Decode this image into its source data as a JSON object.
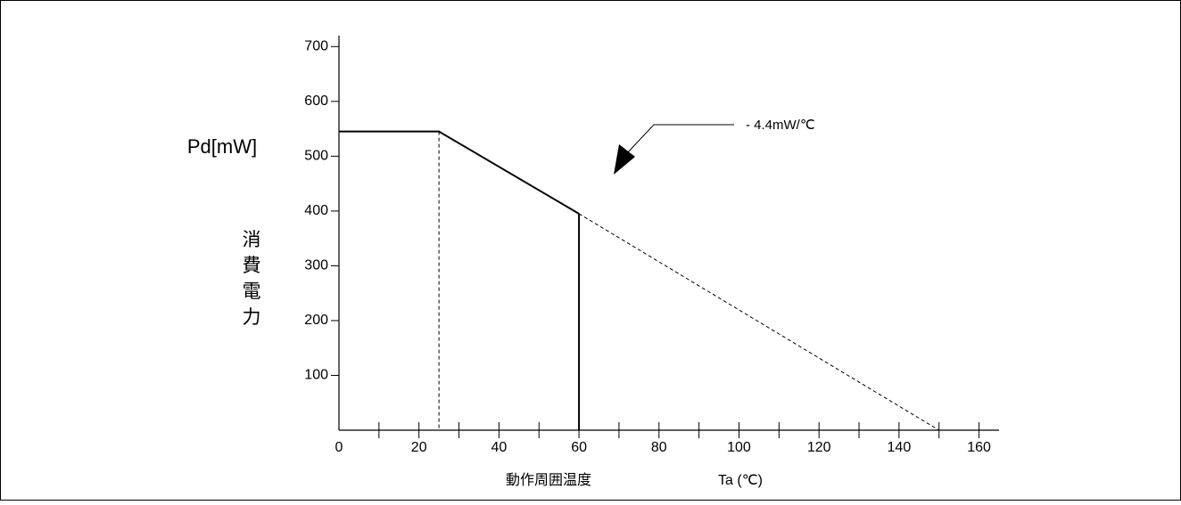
{
  "chart_data": {
    "type": "line",
    "y_unit_label": "Pd[mW]",
    "y_title_chars": [
      "消",
      "費",
      "電",
      "力"
    ],
    "x_title": "動作周囲温度",
    "x_unit_label": "Ta (℃)",
    "x_ticks": [
      0,
      20,
      40,
      60,
      80,
      100,
      120,
      140,
      160
    ],
    "y_ticks": [
      100,
      200,
      300,
      400,
      500,
      600,
      700
    ],
    "xlim": [
      0,
      165
    ],
    "ylim": [
      0,
      720
    ],
    "grid": false,
    "series": [
      {
        "style": "solid",
        "x": [
          0,
          25,
          60
        ],
        "y": [
          545,
          545,
          395
        ]
      },
      {
        "style": "dashed",
        "x": [
          60,
          150
        ],
        "y": [
          395,
          0
        ]
      }
    ],
    "drop_lines": [
      {
        "x": 25,
        "y": 545,
        "style": "dashed"
      },
      {
        "x": 60,
        "y": 395,
        "style": "solid"
      }
    ],
    "annotation": {
      "text": "- 4.4mW/℃"
    }
  }
}
